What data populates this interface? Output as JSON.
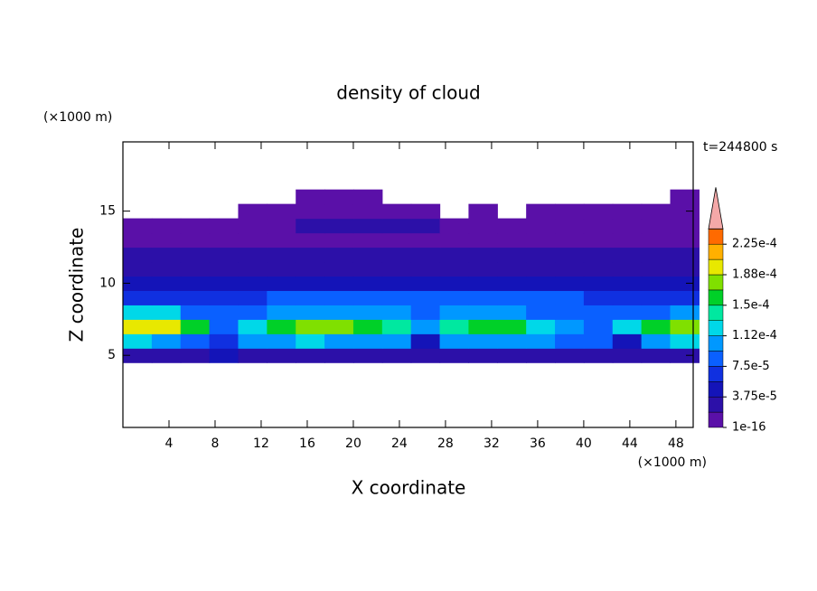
{
  "chart_data": {
    "type": "contour",
    "title": "density of cloud",
    "x_label": "X coordinate",
    "y_label": "Z coordinate",
    "x_unit": "(×1000 m)",
    "y_unit": "(×1000 m)",
    "time_label": "t=244800 s",
    "xlim": [
      0,
      49.5
    ],
    "ylim": [
      0,
      19.8
    ],
    "xticks": [
      4,
      8,
      12,
      16,
      20,
      24,
      28,
      32,
      36,
      40,
      44,
      48
    ],
    "yticks": [
      5,
      10,
      15
    ],
    "x": [
      1.25,
      3.75,
      6.25,
      8.75,
      11.25,
      13.75,
      16.25,
      18.75,
      21.25,
      23.75,
      26.25,
      28.75,
      31.25,
      33.75,
      36.25,
      38.75,
      41.25,
      43.75,
      46.25,
      48.75
    ],
    "y": [
      5,
      6,
      7,
      8,
      9,
      10,
      11,
      12,
      13,
      14,
      15,
      16
    ],
    "z": [
      [
        3e-05,
        3e-05,
        3e-05,
        4e-05,
        3e-05,
        3e-05,
        3e-05,
        3e-05,
        3e-05,
        3e-05,
        2e-05,
        3e-05,
        3e-05,
        3e-05,
        3e-05,
        3e-05,
        3e-05,
        2e-05,
        3e-05,
        3e-05
      ],
      [
        0.00012,
        0.00011,
        9e-05,
        6e-05,
        0.00011,
        0.00011,
        0.00012,
        0.00011,
        0.00011,
        0.00011,
        5e-05,
        0.00011,
        0.00011,
        0.00011,
        0.00011,
        9e-05,
        8e-05,
        5e-05,
        0.0001,
        0.00012
      ],
      [
        0.0002,
        0.0002,
        0.00016,
        9e-05,
        0.00013,
        0.00016,
        0.00017,
        0.00017,
        0.00016,
        0.00014,
        0.00011,
        0.00014,
        0.00015,
        0.00015,
        0.00013,
        0.00011,
        8e-05,
        0.00012,
        0.00015,
        0.00018
      ],
      [
        0.00012,
        0.00012,
        9e-05,
        9e-05,
        9e-05,
        0.00011,
        0.00011,
        0.00011,
        0.00011,
        0.00011,
        9e-05,
        0.00011,
        0.00011,
        0.00011,
        9e-05,
        9e-05,
        9e-05,
        9e-05,
        9e-05,
        0.00011
      ],
      [
        6e-05,
        6e-05,
        6e-05,
        6e-05,
        6e-05,
        8e-05,
        8e-05,
        8e-05,
        8e-05,
        8e-05,
        8e-05,
        8e-05,
        8e-05,
        8e-05,
        8e-05,
        8e-05,
        6e-05,
        6e-05,
        6e-05,
        6e-05
      ],
      [
        4e-05,
        4e-05,
        4e-05,
        4e-05,
        5e-05,
        5e-05,
        5e-05,
        5e-05,
        4e-05,
        4e-05,
        4e-05,
        4e-05,
        5e-05,
        5e-05,
        4e-05,
        4e-05,
        4e-05,
        4e-05,
        4e-05,
        4e-05
      ],
      [
        3e-05,
        3e-05,
        3e-05,
        3e-05,
        3e-05,
        3e-05,
        3e-05,
        3e-05,
        3e-05,
        3e-05,
        3e-05,
        3e-05,
        3e-05,
        3e-05,
        3e-05,
        3e-05,
        3e-05,
        3e-05,
        3e-05,
        3e-05
      ],
      [
        2e-05,
        2e-05,
        2e-05,
        2e-05,
        2e-05,
        3e-05,
        3e-05,
        3e-05,
        3e-05,
        3e-05,
        3e-05,
        3e-05,
        3e-05,
        2e-05,
        2e-05,
        2e-05,
        2e-05,
        2e-05,
        2e-05,
        2e-05
      ],
      [
        1e-05,
        1e-05,
        1e-05,
        1e-05,
        1e-05,
        1e-05,
        1e-05,
        1e-05,
        1e-05,
        1e-05,
        1e-05,
        1e-05,
        1e-05,
        1e-05,
        1e-05,
        1e-05,
        1e-05,
        1e-05,
        1e-05,
        1e-05
      ],
      [
        1e-05,
        1e-05,
        1e-05,
        1e-05,
        1e-05,
        1e-05,
        2e-05,
        2e-05,
        2e-05,
        2e-05,
        2e-05,
        1e-05,
        1e-05,
        1e-05,
        1e-05,
        1e-05,
        1e-05,
        1e-05,
        1e-05,
        1e-05
      ],
      [
        null,
        null,
        null,
        null,
        1e-05,
        1e-05,
        1e-05,
        1e-05,
        1e-05,
        1e-05,
        1e-05,
        null,
        1e-05,
        null,
        1e-05,
        1e-05,
        1e-05,
        1e-05,
        1e-05,
        1e-05
      ],
      [
        null,
        null,
        null,
        null,
        null,
        null,
        1e-05,
        1e-05,
        1e-05,
        null,
        null,
        null,
        null,
        null,
        null,
        null,
        null,
        null,
        null,
        1e-05
      ]
    ],
    "colorbar": {
      "levels": [
        1e-16,
        1.875e-05,
        3.75e-05,
        5.625e-05,
        7.5e-05,
        9.375e-05,
        0.0001125,
        0.00013125,
        0.00015,
        0.00016875,
        0.0001875,
        0.00020625,
        0.000225,
        0.00024375
      ],
      "ticks": [
        {
          "value": 1e-16,
          "label": "1e-16"
        },
        {
          "value": 3.75e-05,
          "label": "3.75e-5"
        },
        {
          "value": 7.5e-05,
          "label": "7.5e-5"
        },
        {
          "value": 0.0001125,
          "label": "1.12e-4"
        },
        {
          "value": 0.00015,
          "label": "1.5e-4"
        },
        {
          "value": 0.0001875,
          "label": "1.88e-4"
        },
        {
          "value": 0.000225,
          "label": "2.25e-4"
        }
      ],
      "colors": [
        "#5a10a8",
        "#2c10a8",
        "#1414b8",
        "#1030e0",
        "#0a60ff",
        "#0098ff",
        "#00d8e8",
        "#00e8a0",
        "#00d028",
        "#80e000",
        "#e8e800",
        "#ffb000",
        "#ff6a00"
      ],
      "extend_color": "#f4a8a8"
    }
  }
}
